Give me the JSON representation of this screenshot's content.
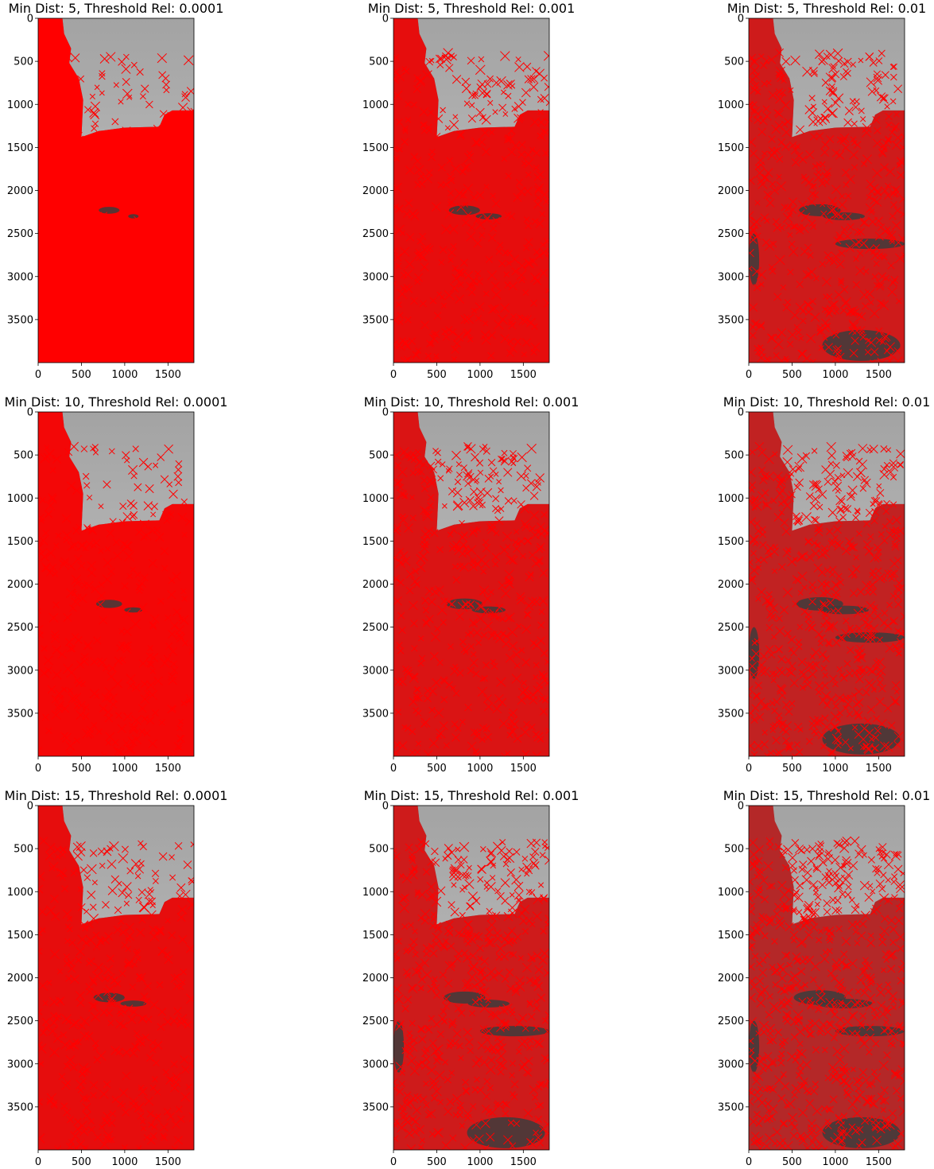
{
  "figure": {
    "colors": {
      "marker": "#ff0000",
      "sky_top": "#a3a3a3",
      "sky_bottom": "#c8c8c8",
      "ground": "#5a5a5a",
      "dark_ground": "#3c3c3c",
      "axis": "#000000",
      "background": "#ffffff"
    }
  },
  "chart_data": [
    {
      "type": "image",
      "title": "Min Dist: 5, Threshold Rel: 0.0001",
      "min_dist": 5,
      "threshold_rel": 0.0001,
      "xlim": [
        0,
        1800
      ],
      "ylim": [
        4000,
        0
      ],
      "xticks": [
        0,
        500,
        1000,
        1500
      ],
      "xtick_labels": [
        "0",
        "500",
        "1000",
        "1500"
      ],
      "yticks": [
        0,
        500,
        1000,
        1500,
        2000,
        2500,
        3000,
        3500
      ],
      "ytick_labels": [
        "0",
        "500",
        "1000",
        "1500",
        "2000",
        "2500",
        "3000",
        "3500"
      ],
      "marker": "x",
      "marker_color": "red"
    },
    {
      "type": "image",
      "title": "Min Dist: 5, Threshold Rel: 0.001",
      "min_dist": 5,
      "threshold_rel": 0.001,
      "xlim": [
        0,
        1800
      ],
      "ylim": [
        4000,
        0
      ],
      "xticks": [
        0,
        500,
        1000,
        1500
      ],
      "xtick_labels": [
        "0",
        "500",
        "1000",
        "1500"
      ],
      "yticks": [
        0,
        500,
        1000,
        1500,
        2000,
        2500,
        3000,
        3500
      ],
      "ytick_labels": [
        "0",
        "500",
        "1000",
        "1500",
        "2000",
        "2500",
        "3000",
        "3500"
      ],
      "marker": "x",
      "marker_color": "red"
    },
    {
      "type": "image",
      "title": "Min Dist: 5, Threshold Rel: 0.01",
      "min_dist": 5,
      "threshold_rel": 0.01,
      "xlim": [
        0,
        1800
      ],
      "ylim": [
        4000,
        0
      ],
      "xticks": [
        0,
        500,
        1000,
        1500
      ],
      "xtick_labels": [
        "0",
        "500",
        "1000",
        "1500"
      ],
      "yticks": [
        0,
        500,
        1000,
        1500,
        2000,
        2500,
        3000,
        3500
      ],
      "ytick_labels": [
        "0",
        "500",
        "1000",
        "1500",
        "2000",
        "2500",
        "3000",
        "3500"
      ],
      "marker": "x",
      "marker_color": "red"
    },
    {
      "type": "image",
      "title": "Min Dist: 10, Threshold Rel: 0.0001",
      "min_dist": 10,
      "threshold_rel": 0.0001,
      "xlim": [
        0,
        1800
      ],
      "ylim": [
        4000,
        0
      ],
      "xticks": [
        0,
        500,
        1000,
        1500
      ],
      "xtick_labels": [
        "0",
        "500",
        "1000",
        "1500"
      ],
      "yticks": [
        0,
        500,
        1000,
        1500,
        2000,
        2500,
        3000,
        3500
      ],
      "ytick_labels": [
        "0",
        "500",
        "1000",
        "1500",
        "2000",
        "2500",
        "3000",
        "3500"
      ],
      "marker": "x",
      "marker_color": "red"
    },
    {
      "type": "image",
      "title": "Min Dist: 10, Threshold Rel: 0.001",
      "min_dist": 10,
      "threshold_rel": 0.001,
      "xlim": [
        0,
        1800
      ],
      "ylim": [
        4000,
        0
      ],
      "xticks": [
        0,
        500,
        1000,
        1500
      ],
      "xtick_labels": [
        "0",
        "500",
        "1000",
        "1500"
      ],
      "yticks": [
        0,
        500,
        1000,
        1500,
        2000,
        2500,
        3000,
        3500
      ],
      "ytick_labels": [
        "0",
        "500",
        "1000",
        "1500",
        "2000",
        "2500",
        "3000",
        "3500"
      ],
      "marker": "x",
      "marker_color": "red"
    },
    {
      "type": "image",
      "title": "Min Dist: 10, Threshold Rel: 0.01",
      "min_dist": 10,
      "threshold_rel": 0.01,
      "xlim": [
        0,
        1800
      ],
      "ylim": [
        4000,
        0
      ],
      "xticks": [
        0,
        500,
        1000,
        1500
      ],
      "xtick_labels": [
        "0",
        "500",
        "1000",
        "1500"
      ],
      "yticks": [
        0,
        500,
        1000,
        1500,
        2000,
        2500,
        3000,
        3500
      ],
      "ytick_labels": [
        "0",
        "500",
        "1000",
        "1500",
        "2000",
        "2500",
        "3000",
        "3500"
      ],
      "marker": "x",
      "marker_color": "red"
    },
    {
      "type": "image",
      "title": "Min Dist: 15, Threshold Rel: 0.0001",
      "min_dist": 15,
      "threshold_rel": 0.0001,
      "xlim": [
        0,
        1800
      ],
      "ylim": [
        4000,
        0
      ],
      "xticks": [
        0,
        500,
        1000,
        1500
      ],
      "xtick_labels": [
        "0",
        "500",
        "1000",
        "1500"
      ],
      "yticks": [
        0,
        500,
        1000,
        1500,
        2000,
        2500,
        3000,
        3500
      ],
      "ytick_labels": [
        "0",
        "500",
        "1000",
        "1500",
        "2000",
        "2500",
        "3000",
        "3500"
      ],
      "marker": "x",
      "marker_color": "red"
    },
    {
      "type": "image",
      "title": "Min Dist: 15, Threshold Rel: 0.001",
      "min_dist": 15,
      "threshold_rel": 0.001,
      "xlim": [
        0,
        1800
      ],
      "ylim": [
        4000,
        0
      ],
      "xticks": [
        0,
        500,
        1000,
        1500
      ],
      "xtick_labels": [
        "0",
        "500",
        "1000",
        "1500"
      ],
      "yticks": [
        0,
        500,
        1000,
        1500,
        2000,
        2500,
        3000,
        3500
      ],
      "ytick_labels": [
        "0",
        "500",
        "1000",
        "1500",
        "2000",
        "2500",
        "3000",
        "3500"
      ],
      "marker": "x",
      "marker_color": "red"
    },
    {
      "type": "image",
      "title": "Min Dist: 15, Threshold Rel: 0.01",
      "min_dist": 15,
      "threshold_rel": 0.01,
      "xlim": [
        0,
        1800
      ],
      "ylim": [
        4000,
        0
      ],
      "xticks": [
        0,
        500,
        1000,
        1500
      ],
      "xtick_labels": [
        "0",
        "500",
        "1000",
        "1500"
      ],
      "yticks": [
        0,
        500,
        1000,
        1500,
        2000,
        2500,
        3000,
        3500
      ],
      "ytick_labels": [
        "0",
        "500",
        "1000",
        "1500",
        "2000",
        "2500",
        "3000",
        "3500"
      ],
      "marker": "x",
      "marker_color": "red"
    }
  ]
}
